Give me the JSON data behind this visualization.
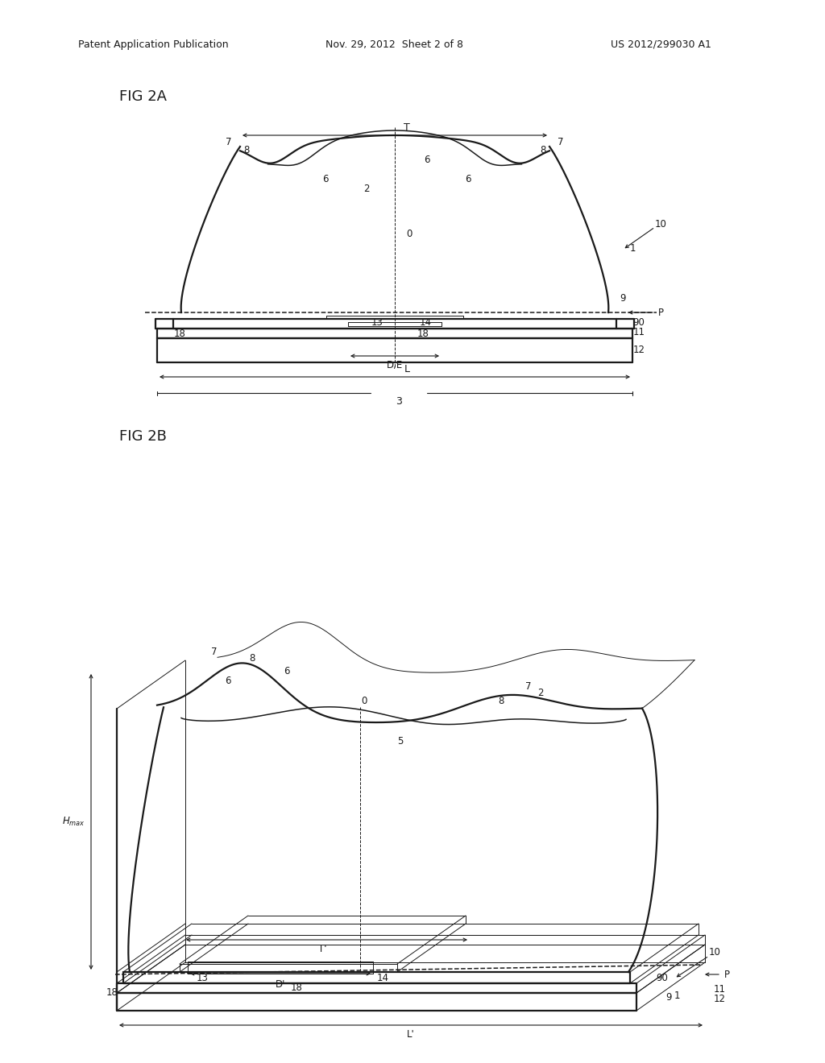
{
  "bg_color": "#ffffff",
  "header_left": "Patent Application Publication",
  "header_mid": "Nov. 29, 2012  Sheet 2 of 8",
  "header_right": "US 2012/299030 A1",
  "fig2a_label": "FIG 2A",
  "fig2b_label": "FIG 2B",
  "line_color": "#1a1a1a",
  "thin_line": 0.7,
  "medium_line": 1.1,
  "thick_line": 1.6
}
